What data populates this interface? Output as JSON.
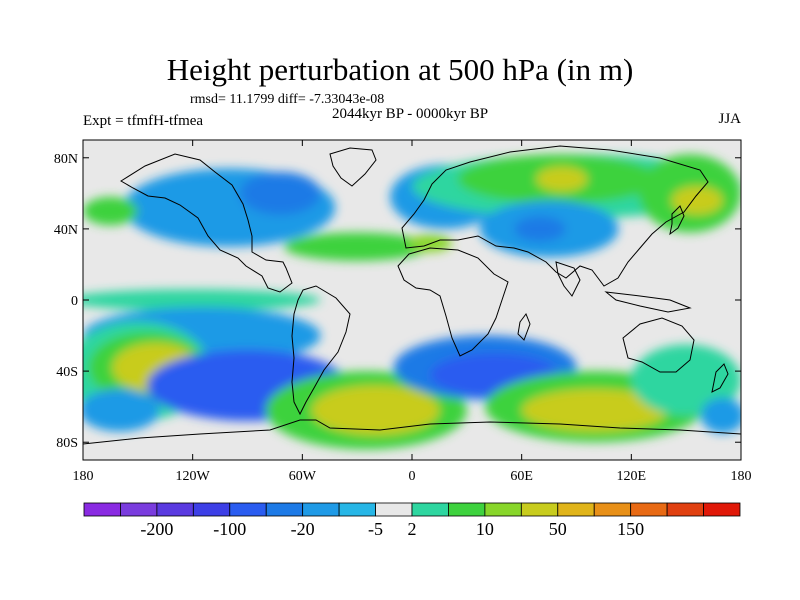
{
  "title": "Height perturbation at 500 hPa (in m)",
  "stats_text": "rmsd= 11.1799 diff= -7.33043e-08",
  "period": "2044kyr BP - 0000kyr BP",
  "experiment": "Expt = tfmfH-tfmea",
  "season": "JJA",
  "chart_data": {
    "type": "heatmap",
    "variable": "500 hPa geopotential height perturbation",
    "units": "m",
    "xlim": [
      -180,
      180
    ],
    "ylim": [
      -90,
      90
    ],
    "x_ticks": [
      {
        "value": -180,
        "label": "180"
      },
      {
        "value": -120,
        "label": "120W"
      },
      {
        "value": -60,
        "label": "60W"
      },
      {
        "value": 0,
        "label": "0"
      },
      {
        "value": 60,
        "label": "60E"
      },
      {
        "value": 120,
        "label": "120E"
      },
      {
        "value": 180,
        "label": "180"
      }
    ],
    "y_ticks": [
      {
        "value": 80,
        "label": "80N"
      },
      {
        "value": 40,
        "label": "40N"
      },
      {
        "value": 0,
        "label": "0"
      },
      {
        "value": -40,
        "label": "40S"
      },
      {
        "value": -80,
        "label": "80S"
      }
    ],
    "colorbar": {
      "colors": [
        "#8a2be2",
        "#7a3cde",
        "#5a3ae0",
        "#3d3fe6",
        "#2a5cf0",
        "#1d7ae6",
        "#1f9ae6",
        "#27b6e6",
        "#e8e8e8",
        "#2ed6a0",
        "#3ed23e",
        "#88d62a",
        "#c8cc1e",
        "#e0b41a",
        "#e89018",
        "#e86a14",
        "#e04010",
        "#e01808"
      ],
      "labels": [
        "-200",
        "-100",
        "-20",
        "-5",
        "2",
        "10",
        "50",
        "150"
      ],
      "label_boundaries": [
        2,
        4,
        6,
        8,
        9,
        11,
        13,
        15
      ]
    },
    "regions": [
      {
        "color": "#1f9ae6",
        "lon": -100,
        "lat": 52,
        "rx": 58,
        "ry": 22
      },
      {
        "color": "#1d7ae6",
        "lon": -72,
        "lat": 60,
        "rx": 22,
        "ry": 12
      },
      {
        "color": "#1d7ae6",
        "lon": 12,
        "lat": 56,
        "rx": 22,
        "ry": 14
      },
      {
        "color": "#2a5cf0",
        "lon": 10,
        "lat": 52,
        "rx": 10,
        "ry": 7
      },
      {
        "color": "#1f9ae6",
        "lon": 18,
        "lat": 58,
        "rx": 30,
        "ry": 18
      },
      {
        "color": "#2ed6a0",
        "lon": 90,
        "lat": 64,
        "rx": 90,
        "ry": 18
      },
      {
        "color": "#3ed23e",
        "lon": 80,
        "lat": 68,
        "rx": 55,
        "ry": 14
      },
      {
        "color": "#c8cc1e",
        "lon": 82,
        "lat": 68,
        "rx": 14,
        "ry": 7
      },
      {
        "color": "#3ed23e",
        "lon": 152,
        "lat": 60,
        "rx": 28,
        "ry": 22
      },
      {
        "color": "#c8cc1e",
        "lon": 156,
        "lat": 56,
        "rx": 14,
        "ry": 8
      },
      {
        "color": "#1f9ae6",
        "lon": 75,
        "lat": 40,
        "rx": 38,
        "ry": 16
      },
      {
        "color": "#1d7ae6",
        "lon": 70,
        "lat": 40,
        "rx": 14,
        "ry": 7
      },
      {
        "color": "#3ed23e",
        "lon": -165,
        "lat": 50,
        "rx": 15,
        "ry": 8
      },
      {
        "color": "#3ed23e",
        "lon": -30,
        "lat": 30,
        "rx": 40,
        "ry": 8
      },
      {
        "color": "#88d62a",
        "lon": 10,
        "lat": 32,
        "rx": 12,
        "ry": 5
      },
      {
        "color": "#2ed6a0",
        "lon": -120,
        "lat": 0,
        "rx": 70,
        "ry": 6
      },
      {
        "color": "#1f9ae6",
        "lon": -115,
        "lat": -20,
        "rx": 65,
        "ry": 16
      },
      {
        "color": "#2ed6a0",
        "lon": -150,
        "lat": -40,
        "rx": 40,
        "ry": 28
      },
      {
        "color": "#3ed23e",
        "lon": -145,
        "lat": -38,
        "rx": 32,
        "ry": 20
      },
      {
        "color": "#c8cc1e",
        "lon": -140,
        "lat": -38,
        "rx": 24,
        "ry": 14
      },
      {
        "color": "#2a5cf0",
        "lon": -90,
        "lat": -48,
        "rx": 55,
        "ry": 20
      },
      {
        "color": "#1f9ae6",
        "lon": -160,
        "lat": -62,
        "rx": 22,
        "ry": 12
      },
      {
        "color": "#3ed23e",
        "lon": -25,
        "lat": -62,
        "rx": 55,
        "ry": 22
      },
      {
        "color": "#c8cc1e",
        "lon": -20,
        "lat": -62,
        "rx": 35,
        "ry": 14
      },
      {
        "color": "#1d7ae6",
        "lon": 40,
        "lat": -38,
        "rx": 50,
        "ry": 18
      },
      {
        "color": "#2a5cf0",
        "lon": 45,
        "lat": -42,
        "rx": 35,
        "ry": 12
      },
      {
        "color": "#3ed23e",
        "lon": 100,
        "lat": -60,
        "rx": 60,
        "ry": 20
      },
      {
        "color": "#c8cc1e",
        "lon": 100,
        "lat": -62,
        "rx": 40,
        "ry": 12
      },
      {
        "color": "#2ed6a0",
        "lon": 150,
        "lat": -45,
        "rx": 30,
        "ry": 20
      },
      {
        "color": "#1f9ae6",
        "lon": 170,
        "lat": -65,
        "rx": 12,
        "ry": 10
      }
    ]
  }
}
